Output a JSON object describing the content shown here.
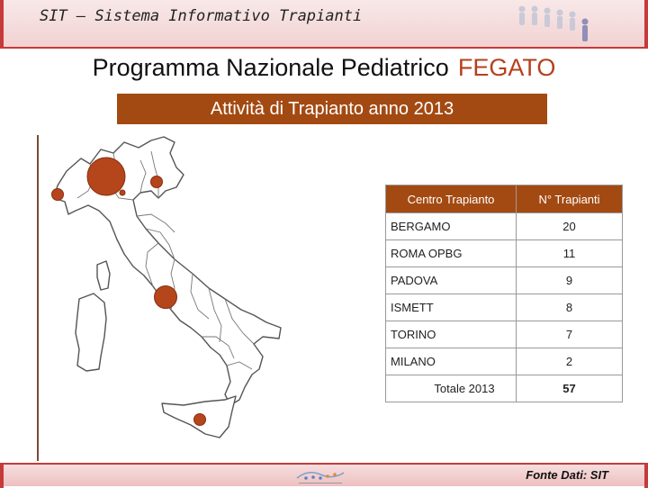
{
  "header": {
    "app_title": "SIT – Sistema Informativo Trapianti"
  },
  "title": {
    "program": "Programma  Nazionale  Pediatrico",
    "organ": "FEGATO"
  },
  "subtitle": "Attività di Trapianto   anno 2013",
  "table": {
    "headers": [
      "Centro Trapianto",
      "N° Trapianti"
    ],
    "rows": [
      {
        "center": "BERGAMO",
        "count": "20"
      },
      {
        "center": "ROMA OPBG",
        "count": "11"
      },
      {
        "center": "PADOVA",
        "count": "9"
      },
      {
        "center": "ISMETT",
        "count": "8"
      },
      {
        "center": "TORINO",
        "count": "7"
      },
      {
        "center": "MILANO",
        "count": "2"
      }
    ],
    "total_label": "Totale 2013",
    "total_value": "57"
  },
  "map": {
    "markers": [
      {
        "center": "BERGAMO",
        "count": 20
      },
      {
        "center": "ROMA OPBG",
        "count": 11
      },
      {
        "center": "PADOVA",
        "count": 9
      },
      {
        "center": "ISMETT",
        "count": 8
      },
      {
        "center": "TORINO",
        "count": 7
      },
      {
        "center": "MILANO",
        "count": 2
      }
    ],
    "marker_color": "#b5461c"
  },
  "footer": {
    "source": "Fonte Dati: SIT"
  },
  "colors": {
    "accent": "#a34a12",
    "header_border": "#c63a3a"
  }
}
